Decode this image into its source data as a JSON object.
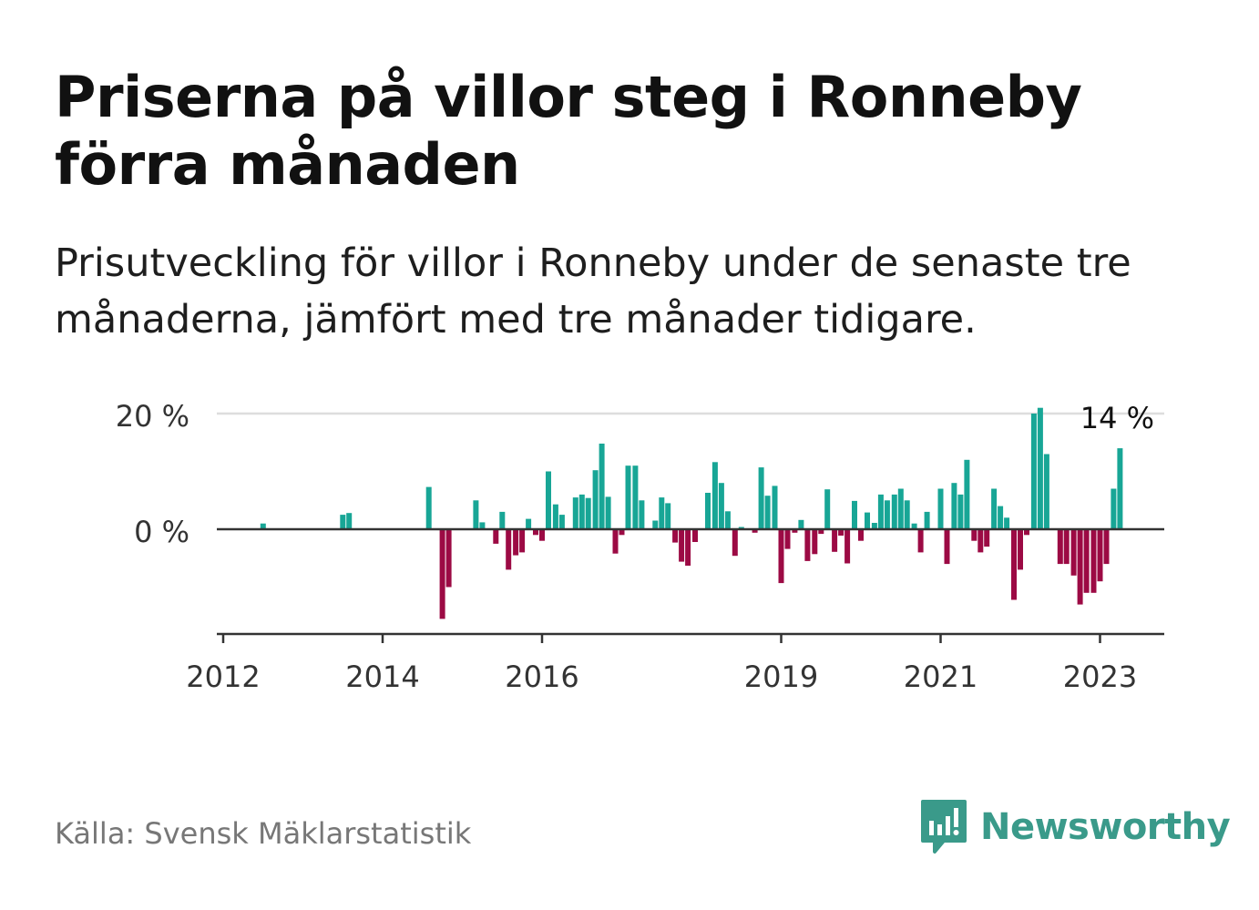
{
  "title": "Priserna på villor steg i Ronneby förra månaden",
  "subtitle": "Prisutveckling för villor i Ronneby under de senaste tre månaderna, jämfört med tre månader tidigare.",
  "source": "Källa: Svensk Mäklarstatistik",
  "brand": {
    "name": "Newsworthy",
    "color": "#3a9a8a"
  },
  "colors": {
    "positive": "#18a696",
    "negative": "#9c0a44",
    "grid": "#dddddd",
    "axis": "#333333"
  },
  "chart_data": {
    "type": "bar",
    "y_ticks": [
      {
        "value": 0,
        "label": "0 %"
      },
      {
        "value": 20,
        "label": "20 %"
      }
    ],
    "x_ticks": [
      {
        "value": 2012.0,
        "label": "2012"
      },
      {
        "value": 2014.0,
        "label": "2014"
      },
      {
        "value": 2016.0,
        "label": "2016"
      },
      {
        "value": 2019.0,
        "label": "2019"
      },
      {
        "value": 2021.0,
        "label": "2021"
      },
      {
        "value": 2023.0,
        "label": "2023"
      }
    ],
    "xlim": [
      2012.0,
      2023.83
    ],
    "ylim": [
      -18,
      22
    ],
    "last_label": "14 %",
    "series": [
      {
        "points": [
          [
            2012.5,
            1
          ],
          [
            2013.5,
            2.5
          ],
          [
            2013.58,
            2.8
          ],
          [
            2014.58,
            7.3
          ],
          [
            2014.75,
            -15.5
          ],
          [
            2014.83,
            -10
          ],
          [
            2015.17,
            5
          ],
          [
            2015.25,
            1.2
          ],
          [
            2015.42,
            -2.5
          ],
          [
            2015.5,
            3
          ],
          [
            2015.58,
            -7
          ],
          [
            2015.67,
            -4.5
          ],
          [
            2015.75,
            -4
          ],
          [
            2015.83,
            1.8
          ],
          [
            2015.92,
            -1
          ],
          [
            2016.0,
            -2
          ],
          [
            2016.08,
            10
          ],
          [
            2016.17,
            4.3
          ],
          [
            2016.25,
            2.5
          ],
          [
            2016.42,
            5.5
          ],
          [
            2016.5,
            6
          ],
          [
            2016.58,
            5.4
          ],
          [
            2016.67,
            10.2
          ],
          [
            2016.75,
            14.8
          ],
          [
            2016.83,
            5.6
          ],
          [
            2016.92,
            -4.2
          ],
          [
            2017.0,
            -1
          ],
          [
            2017.08,
            11
          ],
          [
            2017.17,
            11
          ],
          [
            2017.25,
            5
          ],
          [
            2017.42,
            1.5
          ],
          [
            2017.5,
            5.5
          ],
          [
            2017.58,
            4.5
          ],
          [
            2017.67,
            -2.3
          ],
          [
            2017.75,
            -5.6
          ],
          [
            2017.83,
            -6.3
          ],
          [
            2017.92,
            -2.2
          ],
          [
            2018.08,
            6.3
          ],
          [
            2018.17,
            11.6
          ],
          [
            2018.25,
            8
          ],
          [
            2018.33,
            3.1
          ],
          [
            2018.42,
            -4.6
          ],
          [
            2018.5,
            0.4
          ],
          [
            2018.67,
            -0.6
          ],
          [
            2018.75,
            10.7
          ],
          [
            2018.83,
            5.8
          ],
          [
            2018.92,
            7.5
          ],
          [
            2019.0,
            -9.3
          ],
          [
            2019.08,
            -3.4
          ],
          [
            2019.17,
            -0.6
          ],
          [
            2019.25,
            1.6
          ],
          [
            2019.33,
            -5.5
          ],
          [
            2019.42,
            -4.3
          ],
          [
            2019.5,
            -0.8
          ],
          [
            2019.58,
            6.9
          ],
          [
            2019.67,
            -3.9
          ],
          [
            2019.75,
            -1.1
          ],
          [
            2019.83,
            -5.9
          ],
          [
            2019.92,
            4.9
          ],
          [
            2020.0,
            -2
          ],
          [
            2020.08,
            2.9
          ],
          [
            2020.17,
            1.1
          ],
          [
            2020.25,
            6
          ],
          [
            2020.33,
            5
          ],
          [
            2020.42,
            6
          ],
          [
            2020.5,
            7
          ],
          [
            2020.58,
            5
          ],
          [
            2020.67,
            1
          ],
          [
            2020.75,
            -4
          ],
          [
            2020.83,
            3
          ],
          [
            2021.0,
            7
          ],
          [
            2021.08,
            -6
          ],
          [
            2021.17,
            8
          ],
          [
            2021.25,
            6
          ],
          [
            2021.33,
            12
          ],
          [
            2021.42,
            -2
          ],
          [
            2021.5,
            -4
          ],
          [
            2021.58,
            -3
          ],
          [
            2021.67,
            7
          ],
          [
            2021.75,
            4
          ],
          [
            2021.83,
            2
          ],
          [
            2021.92,
            -12.2
          ],
          [
            2022.0,
            -7
          ],
          [
            2022.08,
            -1
          ],
          [
            2022.17,
            20
          ],
          [
            2022.25,
            21
          ],
          [
            2022.33,
            13
          ],
          [
            2022.5,
            -6
          ],
          [
            2022.58,
            -6
          ],
          [
            2022.67,
            -8
          ],
          [
            2022.75,
            -13
          ],
          [
            2022.83,
            -11
          ],
          [
            2022.92,
            -11
          ],
          [
            2023.0,
            -9
          ],
          [
            2023.08,
            -6
          ],
          [
            2023.17,
            7
          ],
          [
            2023.25,
            14
          ]
        ]
      }
    ]
  }
}
